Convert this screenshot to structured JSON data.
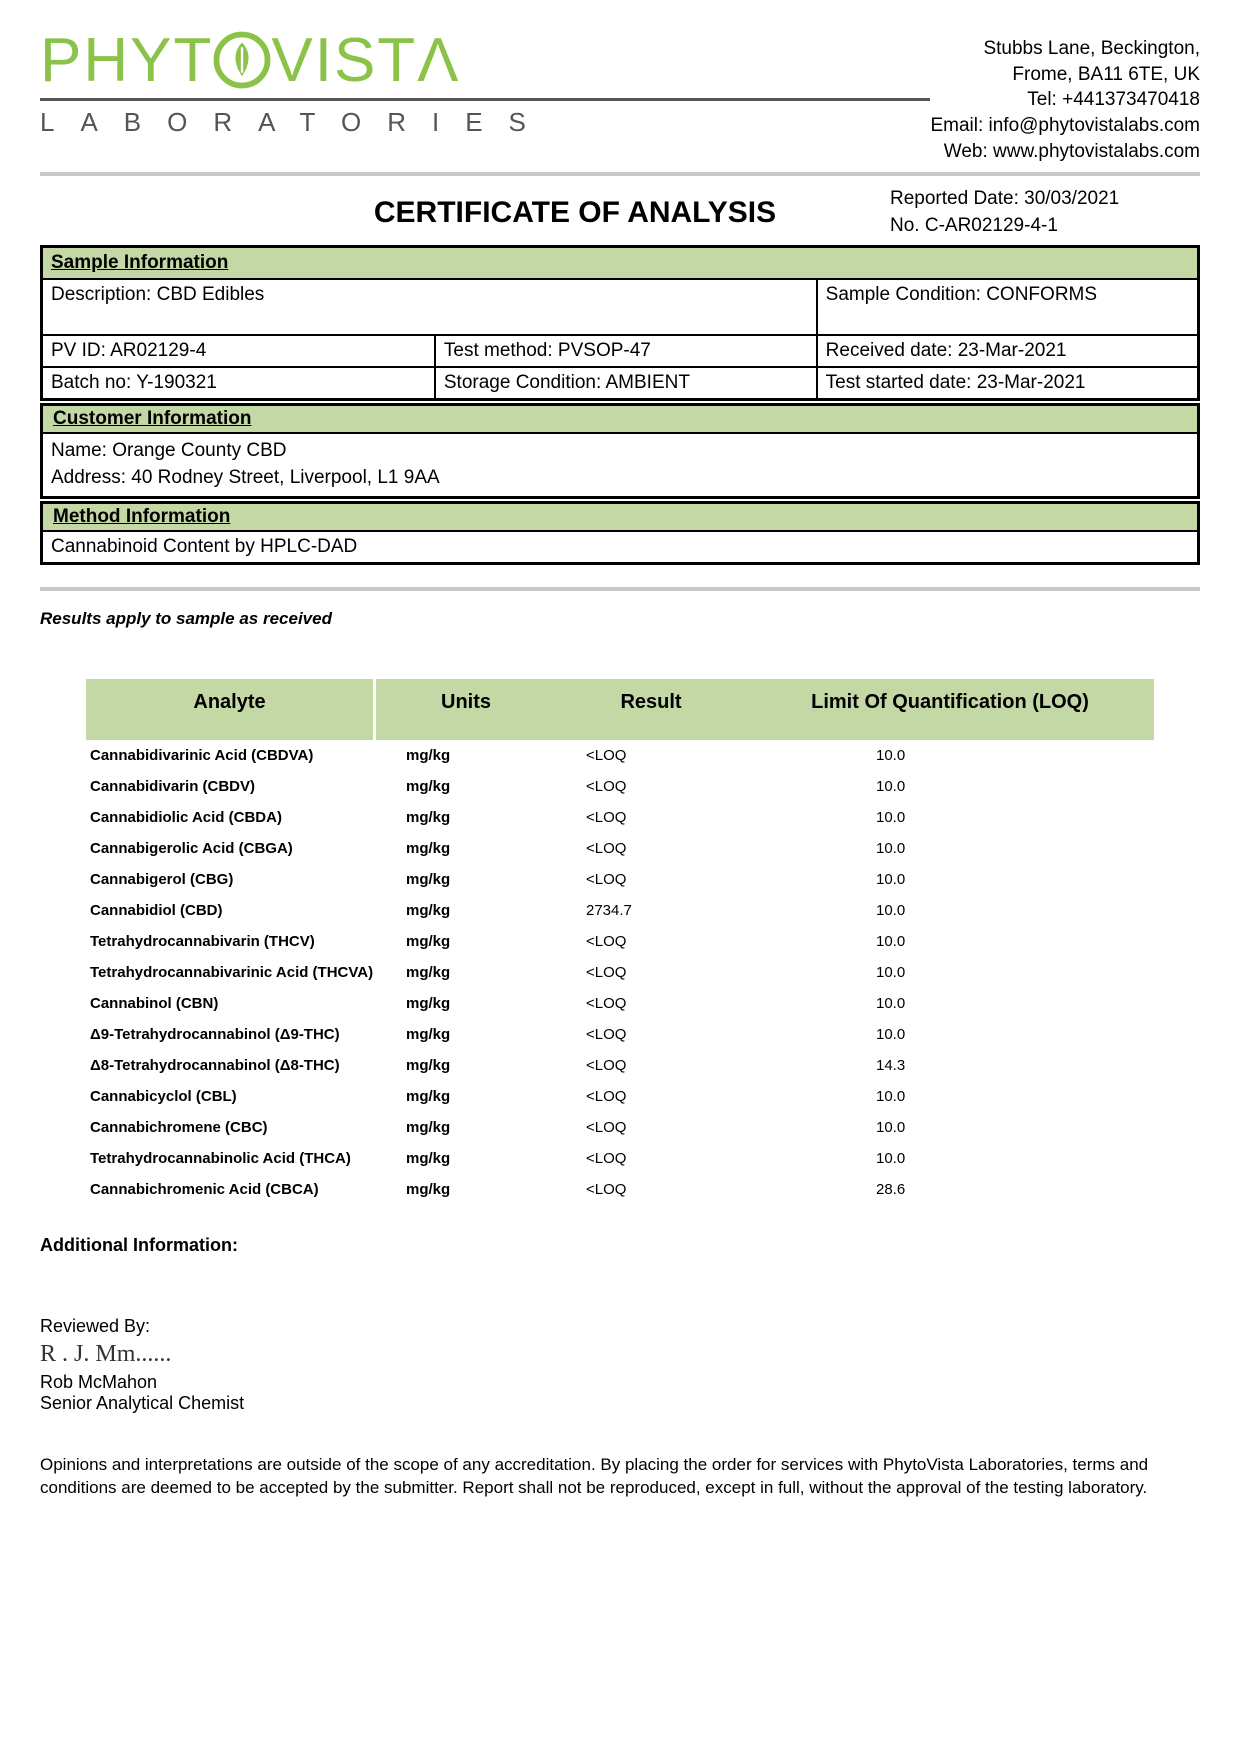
{
  "colors": {
    "brand_green": "#8bc34a",
    "section_bg": "#c4d8a5",
    "rule_gray": "#c8c8c8"
  },
  "logo": {
    "main": "PHYT  VIST",
    "main_trail": "Λ",
    "sub": "LABORATORIES"
  },
  "contact": {
    "line1": "Stubbs Lane, Beckington,",
    "line2": "Frome, BA11 6TE, UK",
    "tel": "Tel: +441373470418",
    "email": "Email: info@phytovistalabs.com",
    "web": "Web: www.phytovistalabs.com"
  },
  "title": "CERTIFICATE OF ANALYSIS",
  "report": {
    "date_label": "Reported Date: 30/03/2021",
    "no_label": "No. C-AR02129-4-1"
  },
  "sections": {
    "sample": "Sample Information",
    "customer": "Customer Information",
    "method": "Method Information"
  },
  "sample": {
    "description": "Description: CBD Edibles",
    "condition": "Sample Condition: CONFORMS",
    "pvid": "PV ID: AR02129-4",
    "test_method": "Test method: PVSOP-47",
    "received": "Received date: 23-Mar-2021",
    "batch": "Batch no: Y-190321",
    "storage": "Storage Condition: AMBIENT",
    "started": "Test started date: 23-Mar-2021"
  },
  "customer": {
    "name": "Name:   Orange County CBD",
    "address": "Address:   40 Rodney Street, Liverpool, L1 9AA"
  },
  "method": "Cannabinoid Content by HPLC-DAD",
  "note": "Results apply to sample as received",
  "table": {
    "headers": {
      "analyte": "Analyte",
      "units": "Units",
      "result": "Result",
      "loq": "Limit Of Quantification (LOQ)"
    },
    "rows": [
      {
        "analyte": "Cannabidivarinic Acid (CBDVA)",
        "units": "mg/kg",
        "result": "<LOQ",
        "loq": "10.0"
      },
      {
        "analyte": "Cannabidivarin (CBDV)",
        "units": "mg/kg",
        "result": "<LOQ",
        "loq": "10.0"
      },
      {
        "analyte": "Cannabidiolic Acid (CBDA)",
        "units": "mg/kg",
        "result": "<LOQ",
        "loq": "10.0"
      },
      {
        "analyte": "Cannabigerolic Acid (CBGA)",
        "units": "mg/kg",
        "result": "<LOQ",
        "loq": "10.0"
      },
      {
        "analyte": "Cannabigerol (CBG)",
        "units": "mg/kg",
        "result": "<LOQ",
        "loq": "10.0"
      },
      {
        "analyte": "Cannabidiol (CBD)",
        "units": "mg/kg",
        "result": "2734.7",
        "loq": "10.0"
      },
      {
        "analyte": "Tetrahydrocannabivarin (THCV)",
        "units": "mg/kg",
        "result": "<LOQ",
        "loq": "10.0"
      },
      {
        "analyte": "Tetrahydrocannabivarinic Acid (THCVA)",
        "units": "mg/kg",
        "result": "<LOQ",
        "loq": "10.0"
      },
      {
        "analyte": "Cannabinol (CBN)",
        "units": "mg/kg",
        "result": "<LOQ",
        "loq": "10.0"
      },
      {
        "analyte": "Δ9-Tetrahydrocannabinol (Δ9-THC)",
        "units": "mg/kg",
        "result": "<LOQ",
        "loq": "10.0"
      },
      {
        "analyte": "Δ8-Tetrahydrocannabinol (Δ8-THC)",
        "units": "mg/kg",
        "result": "<LOQ",
        "loq": "14.3"
      },
      {
        "analyte": "Cannabicyclol (CBL)",
        "units": "mg/kg",
        "result": "<LOQ",
        "loq": "10.0"
      },
      {
        "analyte": "Cannabichromene (CBC)",
        "units": "mg/kg",
        "result": "<LOQ",
        "loq": "10.0"
      },
      {
        "analyte": "Tetrahydrocannabinolic Acid (THCA)",
        "units": "mg/kg",
        "result": "<LOQ",
        "loq": "10.0"
      },
      {
        "analyte": "Cannabichromenic Acid (CBCA)",
        "units": "mg/kg",
        "result": "<LOQ",
        "loq": "28.6"
      }
    ]
  },
  "additional_label": "Additional Information:",
  "reviewed_label": "Reviewed By:",
  "signature_scribble": "R . J.  Mm......",
  "reviewer": {
    "name": "Rob McMahon",
    "title": "Senior Analytical Chemist"
  },
  "disclaimer": "Opinions and interpretations are outside of the scope of any accreditation. By placing the order for services with PhytoVista Laboratories, terms and conditions are deemed to be accepted by the submitter. Report shall not be reproduced, except in full, without the approval of the testing laboratory."
}
